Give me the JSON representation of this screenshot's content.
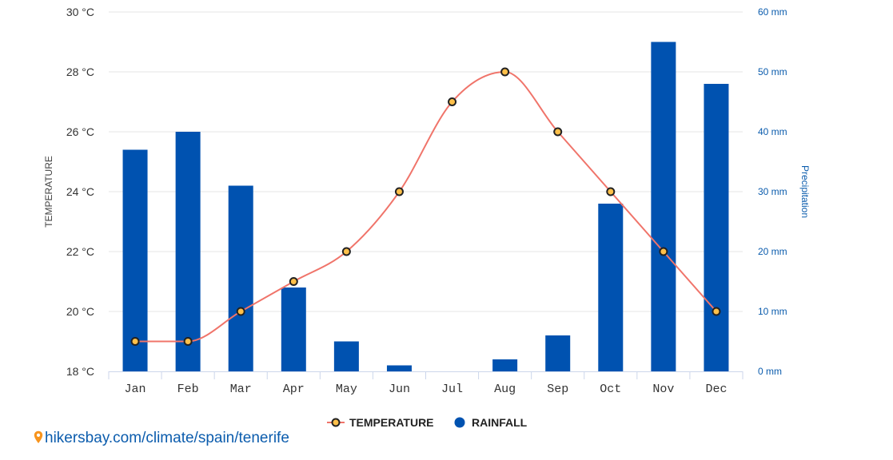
{
  "chart_data": {
    "type": "bar",
    "categories": [
      "Jan",
      "Feb",
      "Mar",
      "Apr",
      "May",
      "Jun",
      "Jul",
      "Aug",
      "Sep",
      "Oct",
      "Nov",
      "Dec"
    ],
    "series": [
      {
        "name": "TEMPERATURE",
        "type": "line",
        "axis": "left",
        "unit": "°C",
        "values": [
          19,
          19,
          20,
          21,
          22,
          24,
          27,
          28,
          26,
          24,
          22,
          20
        ]
      },
      {
        "name": "RAINFALL",
        "type": "bar",
        "axis": "right",
        "unit": "mm",
        "values": [
          37,
          40,
          31,
          14,
          5,
          1,
          0,
          2,
          6,
          28,
          55,
          48
        ]
      }
    ],
    "y_left": {
      "label": "TEMPERATURE",
      "min": 18,
      "max": 30,
      "ticks": [
        "18 °C",
        "20 °C",
        "22 °C",
        "24 °C",
        "26 °C",
        "28 °C",
        "30 °C"
      ]
    },
    "y_right": {
      "label": "Precipitation",
      "min": 0,
      "max": 60,
      "ticks": [
        "0 mm",
        "10 mm",
        "20 mm",
        "30 mm",
        "40 mm",
        "50 mm",
        "60 mm"
      ]
    },
    "legend": [
      {
        "label": "TEMPERATURE",
        "icon": "line-marker-icon"
      },
      {
        "label": "RAINFALL",
        "icon": "dot-icon"
      }
    ],
    "legend_position": "bottom-center",
    "grid": true,
    "colors": {
      "bar": "#0052b0",
      "line": "#f0746a",
      "marker_fill": "#ffc04a",
      "marker_stroke": "#222222",
      "right_axis": "#0b5cad"
    }
  },
  "footer": {
    "source_text": "hikersbay.com/climate/spain/tenerife",
    "icon": "location-pin-icon"
  }
}
